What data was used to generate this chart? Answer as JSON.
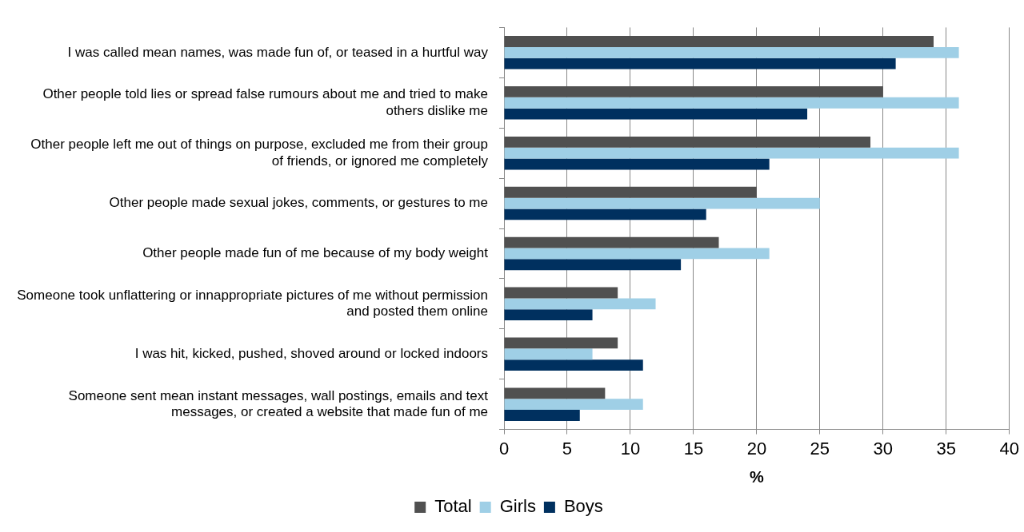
{
  "chart_data": {
    "type": "bar",
    "orientation": "horizontal",
    "xlabel": "%",
    "categories": [
      "I was called mean names, was made fun of, or teased in a hurtful way",
      "Other people told lies or spread false rumours about me and tried to make others dislike me",
      "Other people left me out of things on purpose, excluded me from their group of friends, or ignored me completely",
      "Other people made sexual jokes, comments, or gestures to me",
      "Other people made fun of me because of my body weight",
      "Someone took unflattering or innappropriate pictures of me without permission and posted them online",
      "I was hit, kicked, pushed, shoved around or locked indoors",
      "Someone sent mean instant messages, wall postings, emails and text messages, or created a website that made fun of me"
    ],
    "series": [
      {
        "name": "Total",
        "color": "#505050",
        "values": [
          34,
          30,
          29,
          20,
          17,
          9,
          9,
          8
        ]
      },
      {
        "name": "Girls",
        "color": "#9fcfe6",
        "values": [
          36,
          36,
          36,
          25,
          21,
          12,
          7,
          11
        ]
      },
      {
        "name": "Boys",
        "color": "#00305f",
        "values": [
          31,
          24,
          21,
          16,
          14,
          7,
          11,
          6
        ]
      }
    ],
    "xlim": [
      0,
      40
    ],
    "xticks": [
      0,
      5,
      10,
      15,
      20,
      25,
      30,
      35,
      40
    ],
    "grid": "x",
    "legend": "bottom"
  }
}
